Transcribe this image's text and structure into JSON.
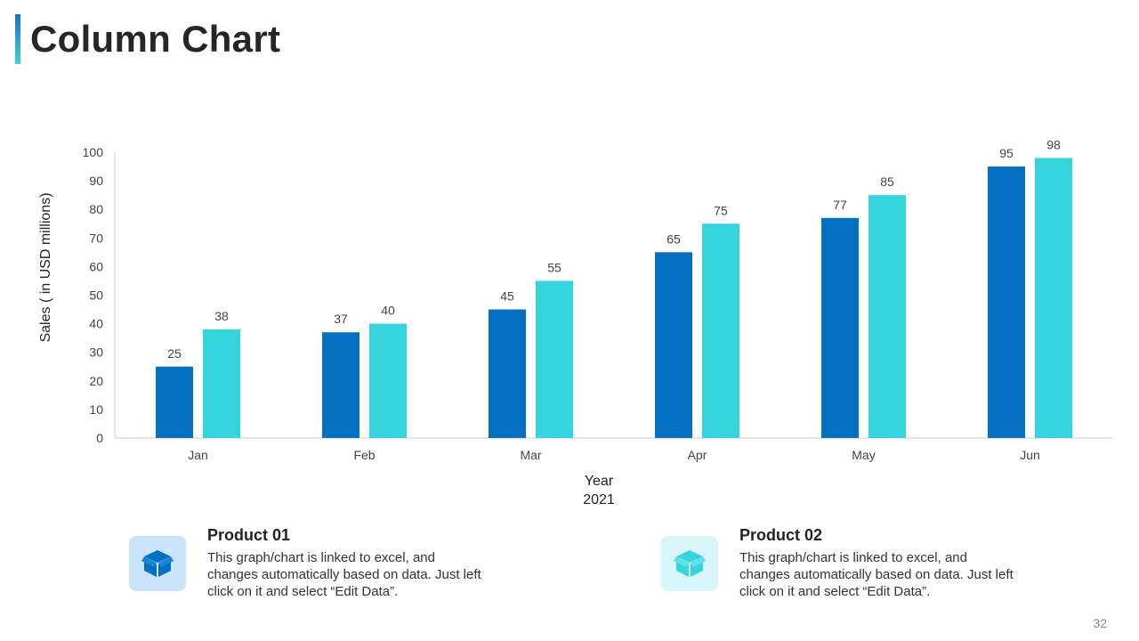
{
  "slide": {
    "title": "Column Chart",
    "page_number": "32"
  },
  "colors": {
    "product01": "#0570c2",
    "product02": "#36d5de",
    "axis": "#cccccc"
  },
  "chart_data": {
    "type": "bar",
    "title": "",
    "categories": [
      "Jan",
      "Feb",
      "Mar",
      "Apr",
      "May",
      "Jun"
    ],
    "series": [
      {
        "name": "Product 01",
        "values": [
          25,
          37,
          45,
          65,
          77,
          95
        ]
      },
      {
        "name": "Product 02",
        "values": [
          38,
          40,
          55,
          75,
          85,
          98
        ]
      }
    ],
    "ylabel": "Sales  ( in USD millions)",
    "xlabel_line1": "Year",
    "xlabel_line2": "2021",
    "ylim": [
      0,
      100
    ],
    "yticks": [
      0,
      10,
      20,
      30,
      40,
      50,
      60,
      70,
      80,
      90,
      100
    ],
    "grid": false
  },
  "legend": [
    {
      "name": "Product 01",
      "description_lines": [
        "This graph/chart is linked to excel, and",
        "changes automatically based on data. Just left",
        "click on it and select “Edit Data”."
      ],
      "icon": "box-icon"
    },
    {
      "name": "Product 02",
      "description_lines": [
        "This graph/chart is linked to excel, and",
        "changes automatically based on data. Just left",
        "click on it and select “Edit Data”."
      ],
      "icon": "box-icon"
    }
  ]
}
